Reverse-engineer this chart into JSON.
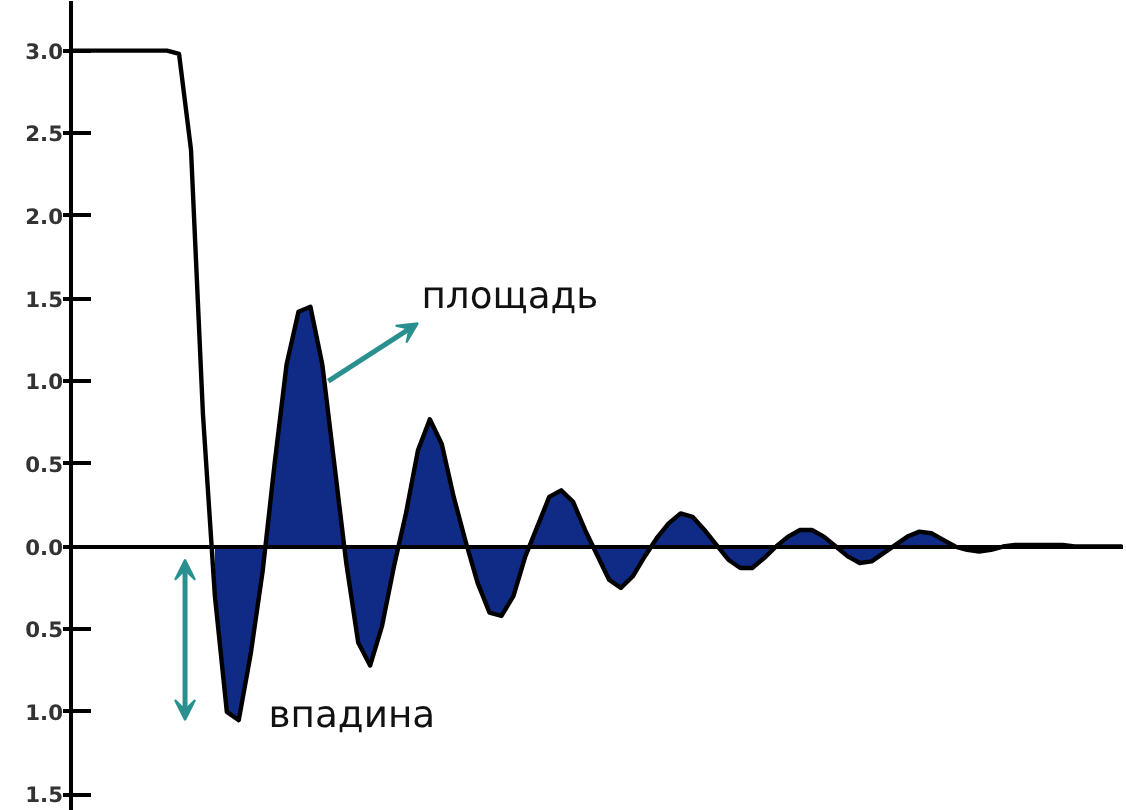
{
  "chart_data": {
    "type": "area",
    "categories": [
      null,
      null,
      null,
      null,
      null,
      null,
      null,
      null,
      null,
      null,
      null,
      null,
      null,
      null,
      null,
      null,
      null,
      null,
      null,
      null,
      null,
      null,
      null,
      null,
      null,
      null,
      null,
      null,
      null,
      null,
      null,
      null,
      null,
      null,
      null,
      null,
      null,
      null,
      null,
      null,
      null,
      null,
      null,
      null,
      null,
      null,
      null,
      null,
      null,
      null,
      null,
      null,
      null,
      null,
      null,
      null,
      null,
      null,
      null,
      null,
      null,
      null,
      null,
      null,
      null,
      null,
      null,
      null,
      null,
      null,
      null,
      null,
      null,
      null,
      null,
      null,
      null,
      null,
      null,
      null,
      null,
      null,
      null,
      null,
      null,
      null,
      null,
      null,
      null
    ],
    "series": [
      {
        "type": "line",
        "color": "#000000",
        "values": [
          3.0,
          3.0,
          3.0,
          3.0,
          3.0,
          3.0,
          3.0,
          3.0,
          3.0,
          2.98,
          2.4,
          0.8,
          -0.3,
          -1.0,
          -1.05,
          -0.65,
          -0.15,
          0.5,
          1.1,
          1.42,
          1.45,
          1.1,
          0.5,
          -0.1,
          -0.58,
          -0.72,
          -0.48,
          -0.12,
          0.2,
          0.58,
          0.77,
          0.62,
          0.3,
          0.03,
          -0.22,
          -0.4,
          -0.42,
          -0.3,
          -0.06,
          0.12,
          0.3,
          0.34,
          0.27,
          0.1,
          -0.05,
          -0.2,
          -0.25,
          -0.18,
          -0.06,
          0.05,
          0.14,
          0.2,
          0.18,
          0.1,
          0.01,
          -0.08,
          -0.13,
          -0.13,
          -0.07,
          0.0,
          0.06,
          0.1,
          0.1,
          0.06,
          0.0,
          -0.06,
          -0.1,
          -0.09,
          -0.04,
          0.01,
          0.06,
          0.09,
          0.08,
          0.04,
          0.0,
          -0.02,
          -0.03,
          -0.02,
          0.0,
          0.01,
          0.01,
          0.01,
          0.01,
          0.01,
          0.0,
          0.0,
          0.0,
          0.0,
          0.0
        ]
      },
      {
        "color": "#0f2b85",
        "values": [
          null,
          null,
          null,
          null,
          null,
          null,
          null,
          null,
          null,
          null,
          null,
          null,
          -0.3,
          -1.0,
          -1.05,
          -0.65,
          -0.15,
          0.5,
          1.1,
          1.42,
          1.45,
          1.1,
          0.5,
          -0.1,
          -0.58,
          -0.72,
          -0.48,
          -0.12,
          0.2,
          0.58,
          0.77,
          0.62,
          0.3,
          0.03,
          -0.22,
          -0.4,
          -0.42,
          -0.3,
          -0.06,
          0.12,
          0.3,
          0.34,
          0.27,
          0.1,
          -0.05,
          -0.2,
          -0.25,
          -0.18,
          -0.06,
          0.05,
          0.14,
          0.2,
          0.18,
          0.1,
          0.01,
          -0.08,
          -0.13,
          -0.13,
          -0.07,
          0.0,
          0.06,
          0.1,
          0.1,
          0.06,
          0.0,
          -0.06,
          -0.1,
          -0.09,
          -0.04,
          0.01,
          0.06,
          0.09,
          0.08,
          0.04,
          0.0,
          -0.02,
          -0.03,
          -0.02,
          0.0,
          0.01,
          0.01,
          0.01,
          0.01,
          0.01,
          0.0,
          0.0,
          0.0,
          0.0,
          0.0
        ]
      }
    ],
    "ylim": [
      -1.6,
      3.3
    ],
    "yticks": [
      {
        "value": 3,
        "label": "3.0"
      },
      2.5,
      {
        "value": 2,
        "label": "2.0"
      },
      1.5,
      {
        "value": 1,
        "label": "1.0"
      },
      0.5,
      {
        "value": 0,
        "label": "0.0"
      },
      {
        "value": -0.5,
        "label": "0.5"
      },
      {
        "value": -1.0,
        "label": "1.0"
      },
      {
        "value": -1.5,
        "label": "1.5"
      }
    ],
    "tick_labels": "y",
    "annotations": [
      "площадь",
      "впадина"
    ]
  }
}
